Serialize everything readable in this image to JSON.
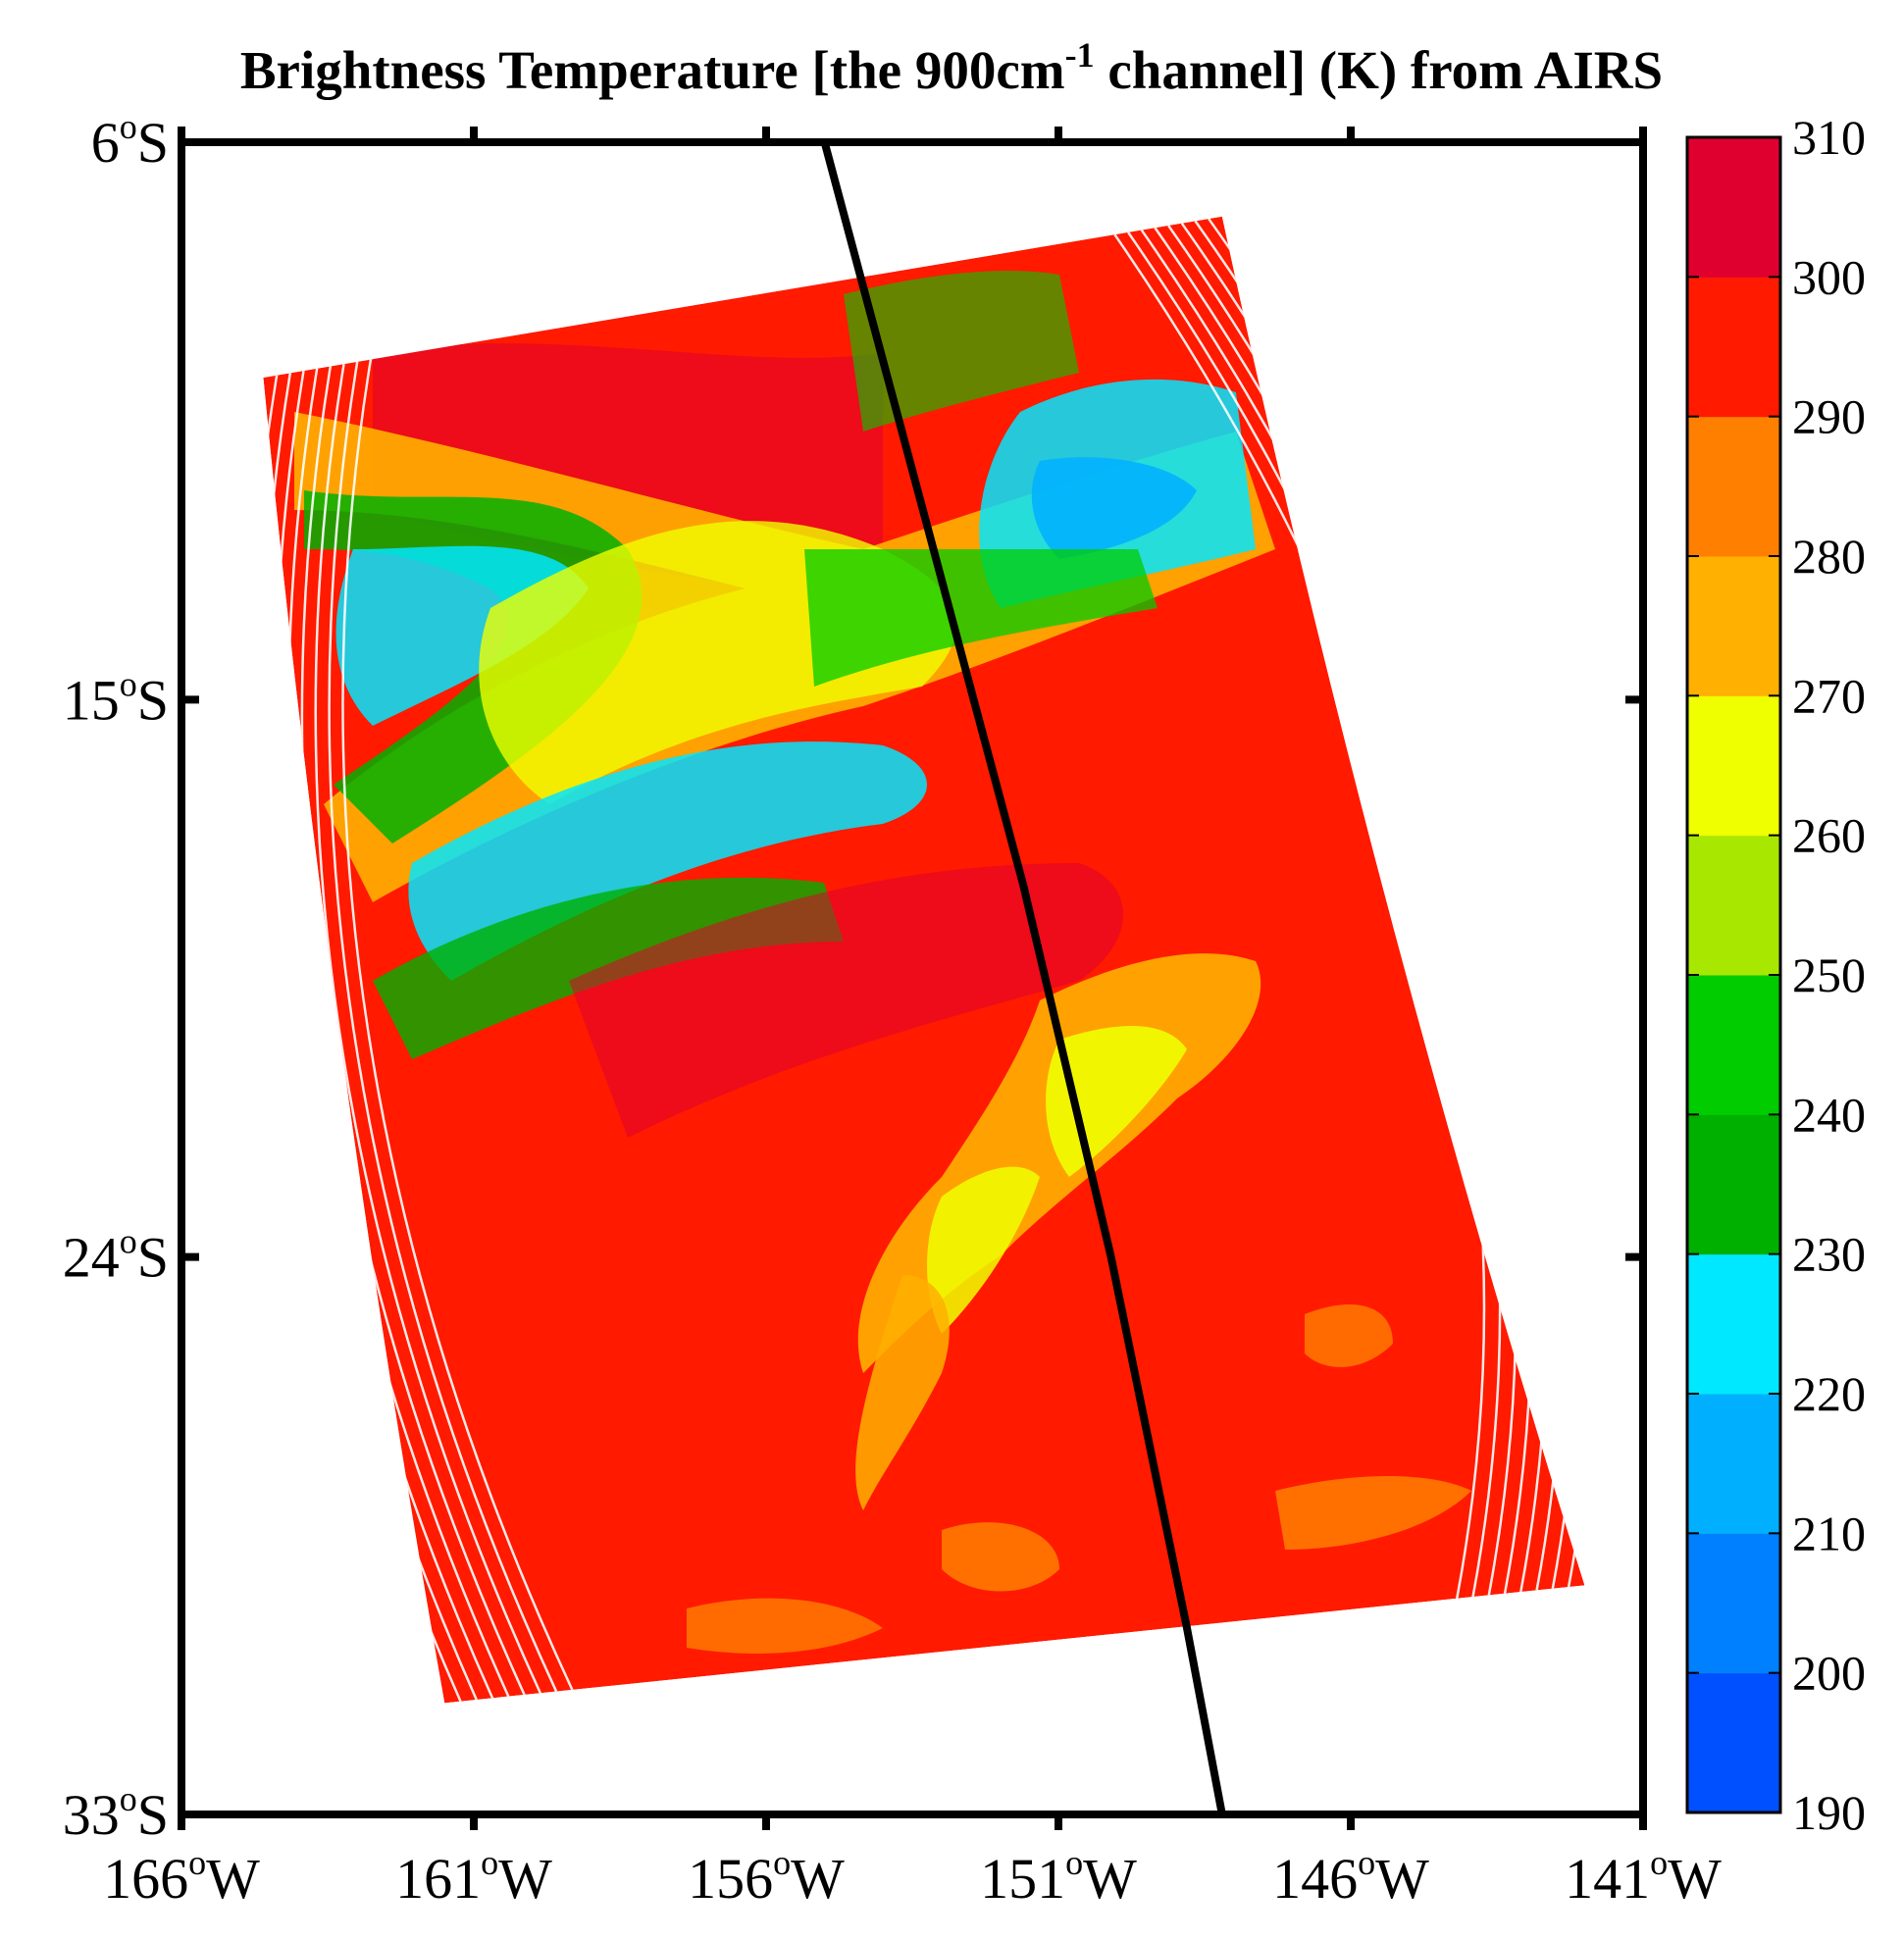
{
  "title": {
    "prefix": "Brightness Temperature [the 900cm",
    "superscript": "-1",
    "suffix": " channel] (K) from AIRS"
  },
  "degree_symbol": "o",
  "map_extent": {
    "lon_min": -166,
    "lon_max": -141,
    "lat_min": -33,
    "lat_max": -6
  },
  "lat_ticks": [
    {
      "value": -6,
      "num": "6",
      "hemi": "S"
    },
    {
      "value": -15,
      "num": "15",
      "hemi": "S"
    },
    {
      "value": -24,
      "num": "24",
      "hemi": "S"
    },
    {
      "value": -33,
      "num": "33",
      "hemi": "S"
    }
  ],
  "lon_ticks": [
    {
      "value": -166,
      "num": "166",
      "hemi": "W"
    },
    {
      "value": -161,
      "num": "161",
      "hemi": "W"
    },
    {
      "value": -156,
      "num": "156",
      "hemi": "W"
    },
    {
      "value": -151,
      "num": "151",
      "hemi": "W"
    },
    {
      "value": -146,
      "num": "146",
      "hemi": "W"
    },
    {
      "value": -141,
      "num": "141",
      "hemi": "W"
    }
  ],
  "colorbar": {
    "min": 190,
    "max": 310,
    "labels": [
      "310",
      "300",
      "290",
      "280",
      "270",
      "260",
      "250",
      "240",
      "230",
      "220",
      "210",
      "200",
      "190"
    ],
    "colors": [
      "#0050ff",
      "#0080ff",
      "#00b0ff",
      "#00e8ff",
      "#00b000",
      "#00cc00",
      "#a8e800",
      "#f0ff00",
      "#ffb000",
      "#ff8000",
      "#ff1a00",
      "#e00030"
    ]
  },
  "swath_corners": {
    "top_left": {
      "lon": -164.6,
      "lat": -9.8
    },
    "top_right": {
      "lon": -148.2,
      "lat": -7.2
    },
    "bottom_right": {
      "lon": -142.0,
      "lat": -29.3
    },
    "bottom_left": {
      "lon": -161.5,
      "lat": -31.2
    }
  },
  "track_line": [
    {
      "lon": -155.0,
      "lat": -6.0
    },
    {
      "lon": -153.3,
      "lat": -12.0
    },
    {
      "lon": -151.6,
      "lat": -18.0
    },
    {
      "lon": -150.1,
      "lat": -24.0
    },
    {
      "lon": -148.8,
      "lat": -30.0
    },
    {
      "lon": -148.2,
      "lat": -33.0
    }
  ]
}
